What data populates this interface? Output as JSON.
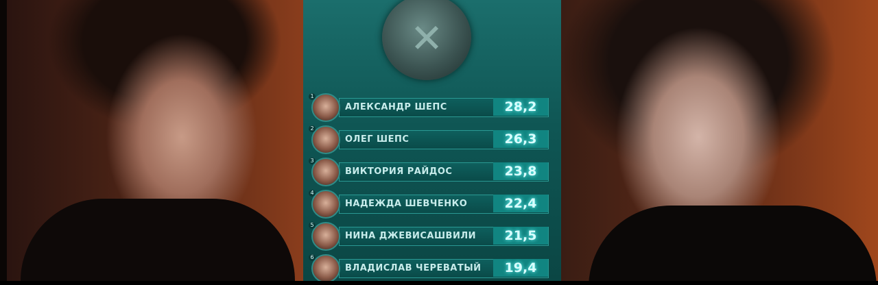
{
  "leaderboard": [
    {
      "rank": "1",
      "name": "АЛЕКСАНДР ШЕПС",
      "score": "28,2"
    },
    {
      "rank": "2",
      "name": "ОЛЕГ ШЕПС",
      "score": "26,3"
    },
    {
      "rank": "3",
      "name": "ВИКТОРИЯ РАЙДОС",
      "score": "23,8"
    },
    {
      "rank": "4",
      "name": "НАДЕЖДА ШЕВЧЕНКО",
      "score": "22,4"
    },
    {
      "rank": "5",
      "name": "НИНА ДЖЕВИСАШВИЛИ",
      "score": "21,5"
    },
    {
      "rank": "6",
      "name": "ВЛАДИСЛАВ ЧЕРЕВАТЫЙ",
      "score": "19,4"
    }
  ],
  "colors": {
    "panel": "#0f5654",
    "score_bg": "#118581",
    "score_text": "#d8ffff"
  }
}
